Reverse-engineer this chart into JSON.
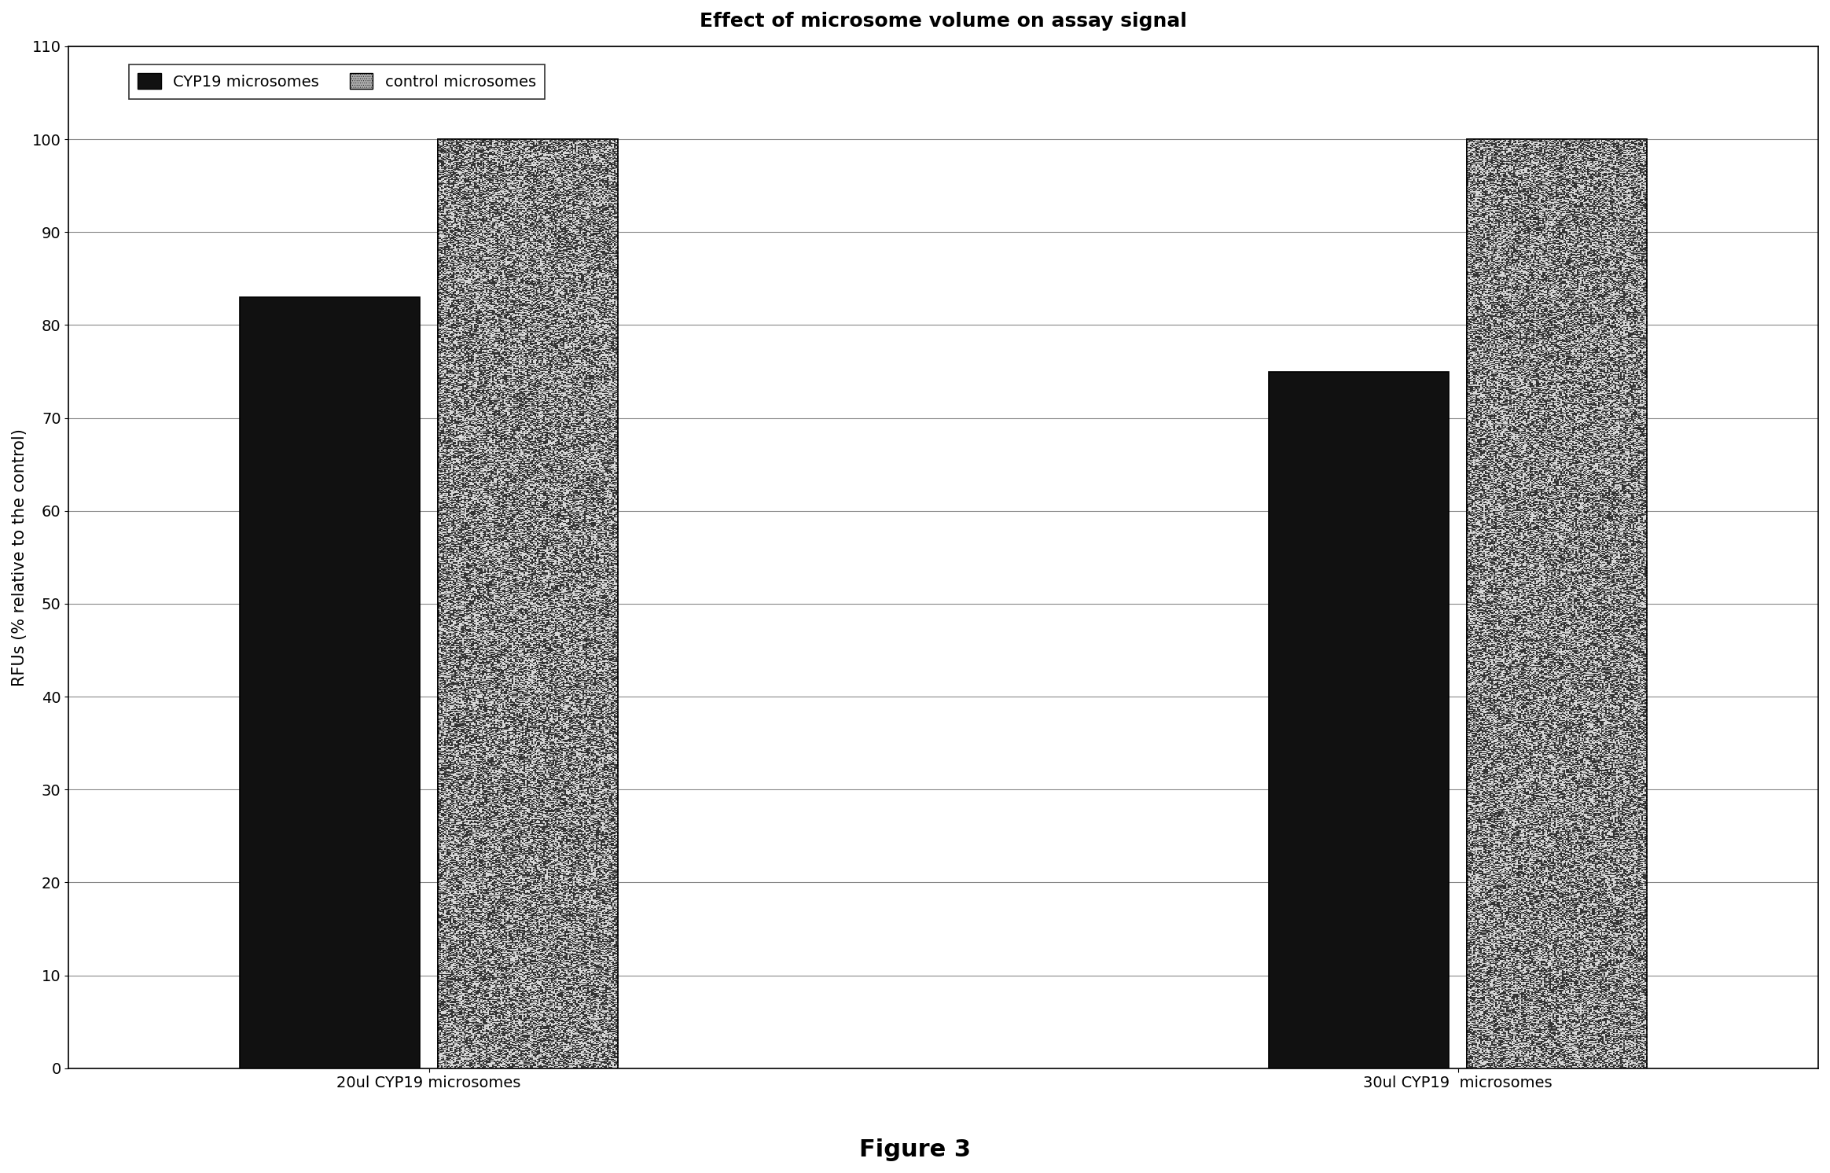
{
  "title": "Effect of microsome volume on assay signal",
  "xlabel": "",
  "ylabel": "RFUs (% relative to the control)",
  "figure_caption": "Figure 3",
  "ylim": [
    0,
    110
  ],
  "yticks": [
    0,
    10,
    20,
    30,
    40,
    50,
    60,
    70,
    80,
    90,
    100,
    110
  ],
  "groups": [
    "20ul CYP19 microsomes",
    "30ul CYP19  microsomes"
  ],
  "bar_labels": [
    "CYP19 microsomes",
    "control microsomes"
  ],
  "values": [
    [
      83,
      100
    ],
    [
      75,
      100
    ]
  ],
  "bar_width": 0.35,
  "group_positions": [
    1.0,
    3.0
  ],
  "background_color": "#ffffff",
  "title_fontsize": 18,
  "axis_fontsize": 15,
  "tick_fontsize": 14,
  "caption_fontsize": 22,
  "legend_fontsize": 14
}
